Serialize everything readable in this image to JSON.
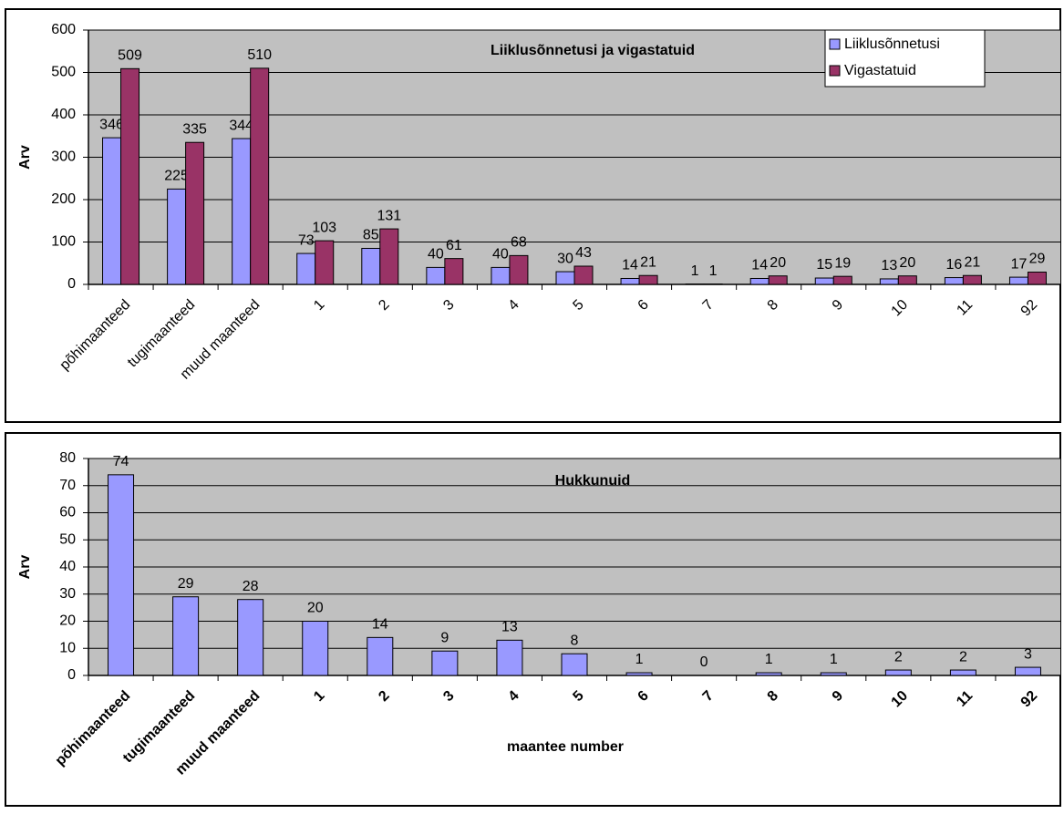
{
  "chart_data": [
    {
      "type": "bar",
      "title": "Liiklusõnnetusi ja vigastatuid",
      "y_label": "Arv",
      "categories": [
        "põhimaanteed",
        "tugimaanteed",
        "muud maanteed",
        "1",
        "2",
        "3",
        "4",
        "5",
        "6",
        "7",
        "8",
        "9",
        "10",
        "11",
        "92"
      ],
      "series": [
        {
          "name": "Liiklusõnnetusi",
          "color": "#9999ff",
          "values": [
            346,
            225,
            344,
            73,
            85,
            40,
            40,
            30,
            14,
            1,
            14,
            15,
            13,
            16,
            17
          ]
        },
        {
          "name": "Vigastatuid",
          "color": "#993366",
          "values": [
            509,
            335,
            510,
            103,
            131,
            61,
            68,
            43,
            21,
            1,
            20,
            19,
            20,
            21,
            29
          ]
        }
      ],
      "ylim": [
        0,
        600
      ],
      "yticks": [
        0,
        100,
        200,
        300,
        400,
        500,
        600
      ],
      "grid": true,
      "legend": "top-right"
    },
    {
      "type": "bar",
      "title": "Hukkunuid",
      "y_label": "Arv",
      "x_label": "maantee number",
      "categories": [
        "põhimaanteed",
        "tugimaanteed",
        "muud maanteed",
        "1",
        "2",
        "3",
        "4",
        "5",
        "6",
        "7",
        "8",
        "9",
        "10",
        "11",
        "92"
      ],
      "values": [
        74,
        29,
        28,
        20,
        14,
        9,
        13,
        8,
        1,
        0,
        1,
        1,
        2,
        2,
        3
      ],
      "color": "#9999ff",
      "ylim": [
        0,
        80
      ],
      "yticks": [
        0,
        10,
        20,
        30,
        40,
        50,
        60,
        70,
        80
      ],
      "grid": true
    }
  ]
}
